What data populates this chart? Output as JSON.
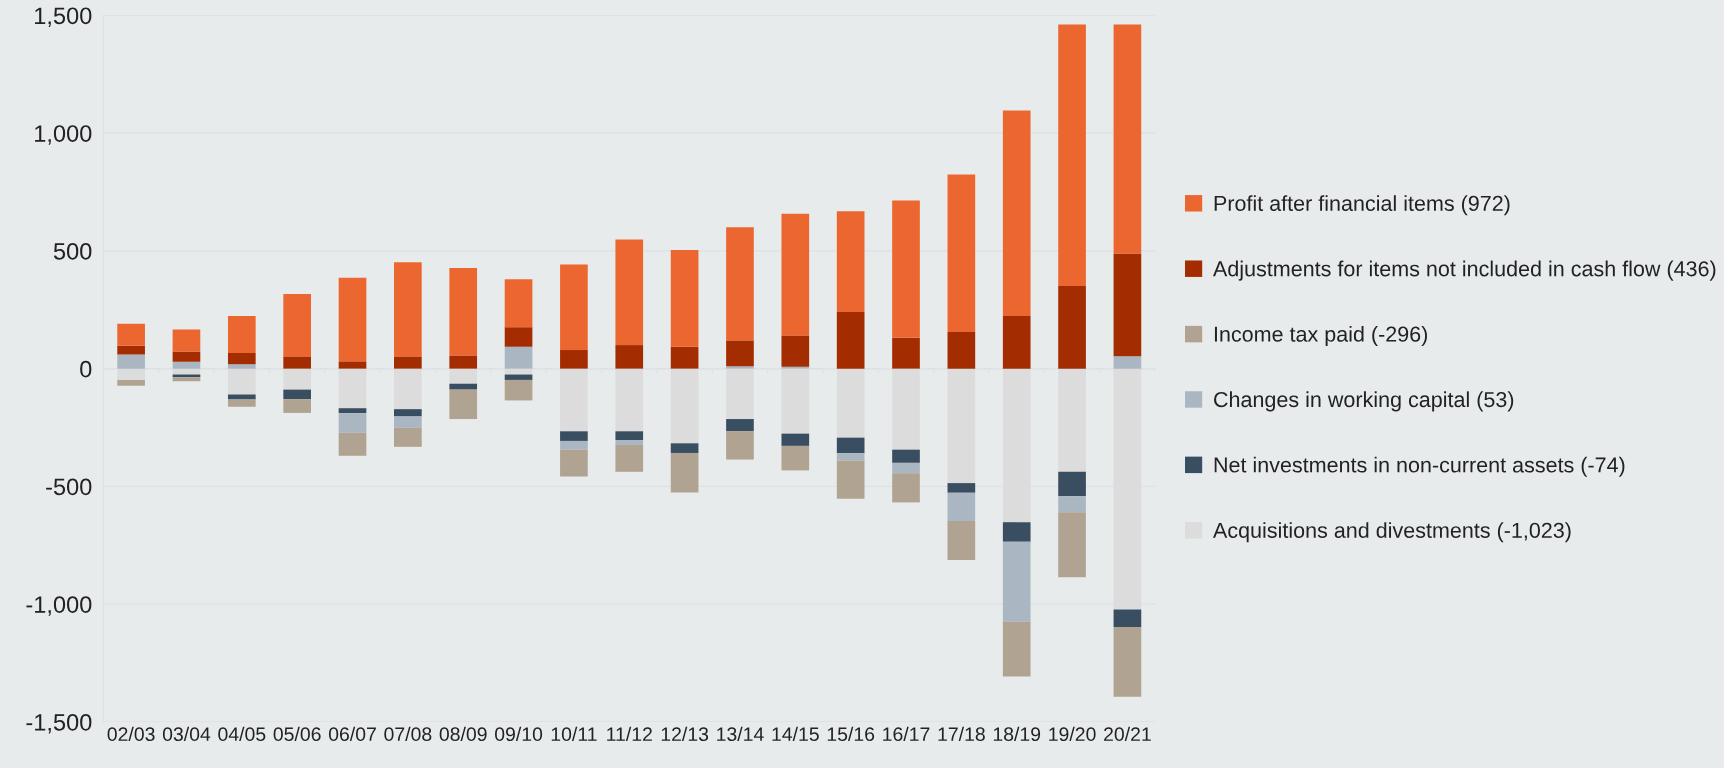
{
  "chart_data": {
    "type": "bar",
    "stacked": true,
    "categories": [
      "02/03",
      "03/04",
      "04/05",
      "05/06",
      "06/07",
      "07/08",
      "08/09",
      "09/10",
      "10/11",
      "11/12",
      "12/13",
      "13/14",
      "14/15",
      "15/16",
      "16/17",
      "17/18",
      "18/19",
      "19/20",
      "20/21"
    ],
    "series": [
      {
        "name": "Acquisitions and divestments (-1,023)",
        "color": "#dcdcdc",
        "values": [
          -48,
          -25,
          -110,
          -89,
          -168,
          -172,
          -64,
          -25,
          -266,
          -266,
          -317,
          -214,
          -276,
          -293,
          -344,
          -486,
          -652,
          -438,
          -1023
        ]
      },
      {
        "name": "Net investments in non-current assets (-74)",
        "color": "#3a4e62",
        "values": [
          0,
          -12,
          -21,
          -41,
          -21,
          -31,
          -25,
          -23,
          -41,
          -37,
          -41,
          -52,
          -52,
          -66,
          -56,
          -41,
          -83,
          -104,
          -74
        ]
      },
      {
        "name": "Changes in working capital (53)",
        "color": "#aab7c3",
        "values": [
          60,
          29,
          19,
          0,
          -83,
          -48,
          0,
          93,
          -37,
          -21,
          0,
          10,
          8,
          -31,
          -44,
          -120,
          -340,
          -68,
          53
        ]
      },
      {
        "name": "Income tax paid (-296)",
        "color": "#b1a391",
        "values": [
          -25,
          -17,
          -31,
          -58,
          -98,
          -81,
          -125,
          -87,
          -114,
          -114,
          -168,
          -120,
          -104,
          -162,
          -124,
          -166,
          -232,
          -276,
          -296
        ]
      },
      {
        "name": "Adjustments for items not included in cash flow (436)",
        "color": "#a32c00",
        "values": [
          37,
          44,
          47,
          52,
          31,
          52,
          56,
          83,
          79,
          100,
          93,
          110,
          133,
          241,
          131,
          156,
          224,
          351,
          436
        ]
      },
      {
        "name": "Profit after financial items (972)",
        "color": "#ec6730",
        "values": [
          94,
          93,
          158,
          265,
          355,
          400,
          371,
          204,
          363,
          448,
          411,
          480,
          517,
          427,
          583,
          668,
          872,
          1110,
          972
        ]
      }
    ],
    "ylim": [
      -1500,
      1500
    ],
    "yticks": [
      {
        "value": -1500,
        "label": "-1,500"
      },
      {
        "value": -1000,
        "label": "-1,000"
      },
      -500,
      0,
      500,
      {
        "value": 1000,
        "label": "1,000"
      },
      {
        "value": 1500,
        "label": "1,500"
      }
    ],
    "grid": "y",
    "legend": "right"
  }
}
